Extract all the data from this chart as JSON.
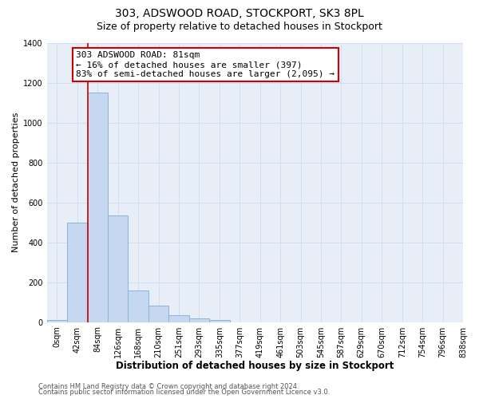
{
  "title": "303, ADSWOOD ROAD, STOCKPORT, SK3 8PL",
  "subtitle": "Size of property relative to detached houses in Stockport",
  "xlabel": "Distribution of detached houses by size in Stockport",
  "ylabel": "Number of detached properties",
  "bin_labels": [
    "0sqm",
    "42sqm",
    "84sqm",
    "126sqm",
    "168sqm",
    "210sqm",
    "251sqm",
    "293sqm",
    "335sqm",
    "377sqm",
    "419sqm",
    "461sqm",
    "503sqm",
    "545sqm",
    "587sqm",
    "629sqm",
    "670sqm",
    "712sqm",
    "754sqm",
    "796sqm",
    "838sqm"
  ],
  "bar_values": [
    10,
    500,
    1150,
    535,
    160,
    83,
    35,
    20,
    10,
    0,
    0,
    0,
    0,
    0,
    0,
    0,
    0,
    0,
    0,
    0
  ],
  "bar_color": "#c5d8f0",
  "bar_edge_color": "#8ab4d8",
  "vline_color": "#cc0000",
  "vline_x_idx": 2,
  "annotation_line1": "303 ADSWOOD ROAD: 81sqm",
  "annotation_line2": "← 16% of detached houses are smaller (397)",
  "annotation_line3": "83% of semi-detached houses are larger (2,095) →",
  "annotation_box_color": "#cc0000",
  "annotation_box_bg": "#ffffff",
  "ylim": [
    0,
    1400
  ],
  "yticks": [
    0,
    200,
    400,
    600,
    800,
    1000,
    1200,
    1400
  ],
  "grid_color": "#d0dff0",
  "bg_color": "#e8eef8",
  "footer_line1": "Contains HM Land Registry data © Crown copyright and database right 2024.",
  "footer_line2": "Contains public sector information licensed under the Open Government Licence v3.0.",
  "title_fontsize": 10,
  "subtitle_fontsize": 9,
  "xlabel_fontsize": 8.5,
  "ylabel_fontsize": 8,
  "tick_fontsize": 7,
  "annotation_fontsize": 8,
  "footer_fontsize": 6
}
